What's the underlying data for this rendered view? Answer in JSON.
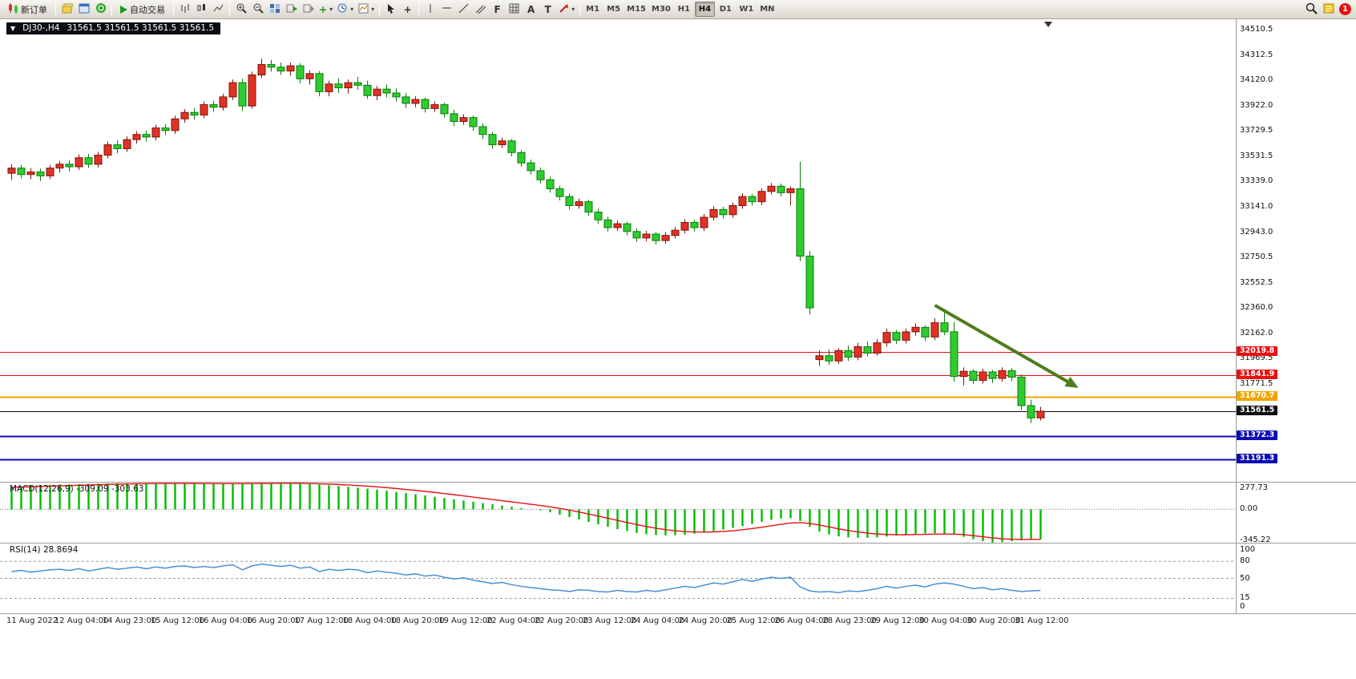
{
  "toolbar": {
    "new_order": "新订单",
    "auto_trading": "自动交易",
    "timeframes": [
      "M1",
      "M5",
      "M15",
      "M30",
      "H1",
      "H4",
      "D1",
      "W1",
      "MN"
    ],
    "active_timeframe": "H4",
    "notification_badge": "1"
  },
  "icons": {
    "one_click_trading": "▼",
    "crosshair": "+",
    "vertical_line": "|",
    "text_tool": "A",
    "text_label_tool": "T",
    "fibonacci": "F",
    "dropdown": "▾",
    "indicators_plus": "+"
  },
  "chart_header": {
    "symbol": "DJ30-,H4",
    "ohlc": "31561.5 31561.5 31561.5 31561.5"
  },
  "chart_data": [
    {
      "type": "candlestick",
      "symbol": "DJ30-,H4",
      "timeframe": "H4",
      "up_color": "#e03224",
      "up_border": "#7a150c",
      "down_color": "#2ecc2e",
      "down_border": "#0a7a0a",
      "ylim": [
        31010,
        34590
      ],
      "y_axis_labels": [
        "34510.5",
        "34312.5",
        "34120.0",
        "33922.0",
        "33729.5",
        "33531.5",
        "33339.0",
        "33141.0",
        "32943.0",
        "32750.5",
        "32552.5",
        "32360.0",
        "32162.0",
        "31969.5",
        "31771.5"
      ],
      "x_labels": [
        "11 Aug 2022",
        "12 Aug 04:00",
        "14 Aug 23:00",
        "15 Aug 12:00",
        "16 Aug 04:00",
        "16 Aug 20:00",
        "17 Aug 12:00",
        "18 Aug 04:00",
        "18 Aug 20:00",
        "19 Aug 12:00",
        "22 Aug 04:00",
        "22 Aug 20:00",
        "23 Aug 12:00",
        "24 Aug 04:00",
        "24 Aug 20:00",
        "25 Aug 12:00",
        "26 Aug 04:00",
        "28 Aug 23:00",
        "29 Aug 12:00",
        "30 Aug 04:00",
        "30 Aug 20:00",
        "31 Aug 12:00"
      ],
      "price_lines": [
        {
          "value": 32019.8,
          "label": "32019.8",
          "color": "#e81010",
          "width": 1,
          "role": "resistance"
        },
        {
          "value": 31841.9,
          "label": "31841.9",
          "color": "#e81010",
          "width": 1,
          "role": "resistance"
        },
        {
          "value": 31670.7,
          "label": "31670.7",
          "color": "#f0a500",
          "width": 2,
          "role": "level"
        },
        {
          "value": 31561.5,
          "label": "31561.5",
          "color": "#101010",
          "width": 1,
          "role": "current-price"
        },
        {
          "value": 31372.3,
          "label": "31372.3",
          "color": "#0a0ab4",
          "width": 2,
          "role": "support"
        },
        {
          "value": 31191.3,
          "label": "31191.3",
          "color": "#0a0ab4",
          "width": 2,
          "role": "support"
        }
      ],
      "trend_arrow": {
        "from_candle": 96,
        "from_price": 32380,
        "to_candle": 110.5,
        "to_price": 31760,
        "color": "#4e7d1e"
      },
      "candles": [
        [
          33400,
          33470,
          33350,
          33440
        ],
        [
          33440,
          33465,
          33360,
          33390
        ],
        [
          33390,
          33440,
          33355,
          33410
        ],
        [
          33410,
          33435,
          33340,
          33380
        ],
        [
          33380,
          33465,
          33355,
          33440
        ],
        [
          33440,
          33495,
          33405,
          33470
        ],
        [
          33470,
          33500,
          33415,
          33450
        ],
        [
          33450,
          33545,
          33425,
          33520
        ],
        [
          33520,
          33550,
          33440,
          33470
        ],
        [
          33470,
          33565,
          33445,
          33540
        ],
        [
          33540,
          33645,
          33515,
          33620
        ],
        [
          33620,
          33655,
          33555,
          33590
        ],
        [
          33590,
          33685,
          33565,
          33660
        ],
        [
          33660,
          33725,
          33630,
          33700
        ],
        [
          33700,
          33730,
          33645,
          33680
        ],
        [
          33680,
          33775,
          33655,
          33750
        ],
        [
          33750,
          33780,
          33695,
          33730
        ],
        [
          33730,
          33845,
          33705,
          33820
        ],
        [
          33820,
          33895,
          33790,
          33870
        ],
        [
          33870,
          33905,
          33815,
          33850
        ],
        [
          33850,
          33955,
          33825,
          33930
        ],
        [
          33930,
          33960,
          33875,
          33910
        ],
        [
          33910,
          34015,
          33885,
          33990
        ],
        [
          33990,
          34125,
          33965,
          34100
        ],
        [
          34100,
          34130,
          33880,
          33920
        ],
        [
          33920,
          34185,
          33900,
          34160
        ],
        [
          34160,
          34285,
          34135,
          34240
        ],
        [
          34240,
          34275,
          34185,
          34220
        ],
        [
          34220,
          34255,
          34160,
          34190
        ],
        [
          34190,
          34255,
          34155,
          34230
        ],
        [
          34230,
          34250,
          34095,
          34130
        ],
        [
          34130,
          34195,
          34085,
          34170
        ],
        [
          34170,
          34190,
          33995,
          34030
        ],
        [
          34030,
          34115,
          33995,
          34090
        ],
        [
          34090,
          34135,
          34020,
          34060
        ],
        [
          34060,
          34125,
          34015,
          34100
        ],
        [
          34100,
          34145,
          34045,
          34080
        ],
        [
          34080,
          34115,
          33975,
          34000
        ],
        [
          34000,
          34075,
          33965,
          34050
        ],
        [
          34050,
          34085,
          33985,
          34020
        ],
        [
          34020,
          34055,
          33955,
          33990
        ],
        [
          33990,
          34020,
          33905,
          33940
        ],
        [
          33940,
          33995,
          33910,
          33970
        ],
        [
          33970,
          33985,
          33870,
          33900
        ],
        [
          33900,
          33955,
          33875,
          33930
        ],
        [
          33930,
          33945,
          33830,
          33860
        ],
        [
          33860,
          33890,
          33765,
          33800
        ],
        [
          33800,
          33855,
          33775,
          33830
        ],
        [
          33830,
          33845,
          33730,
          33760
        ],
        [
          33760,
          33785,
          33665,
          33700
        ],
        [
          33700,
          33720,
          33590,
          33620
        ],
        [
          33620,
          33675,
          33595,
          33650
        ],
        [
          33650,
          33665,
          33530,
          33560
        ],
        [
          33560,
          33580,
          33450,
          33480
        ],
        [
          33480,
          33505,
          33390,
          33420
        ],
        [
          33420,
          33445,
          33320,
          33350
        ],
        [
          33350,
          33375,
          33250,
          33280
        ],
        [
          33280,
          33305,
          33190,
          33220
        ],
        [
          33220,
          33245,
          33120,
          33150
        ],
        [
          33150,
          33205,
          33125,
          33180
        ],
        [
          33180,
          33195,
          33070,
          33100
        ],
        [
          33100,
          33125,
          33010,
          33040
        ],
        [
          33040,
          33065,
          32950,
          32980
        ],
        [
          32980,
          33035,
          32955,
          33010
        ],
        [
          33010,
          33025,
          32920,
          32950
        ],
        [
          32950,
          32975,
          32870,
          32900
        ],
        [
          32900,
          32955,
          32875,
          32930
        ],
        [
          32930,
          32945,
          32850,
          32880
        ],
        [
          32880,
          32945,
          32855,
          32920
        ],
        [
          32920,
          32985,
          32895,
          32960
        ],
        [
          32960,
          33045,
          32935,
          33020
        ],
        [
          33020,
          33040,
          32950,
          32980
        ],
        [
          32980,
          33085,
          32955,
          33060
        ],
        [
          33060,
          33145,
          33035,
          33120
        ],
        [
          33120,
          33140,
          33050,
          33080
        ],
        [
          33080,
          33175,
          33055,
          33150
        ],
        [
          33150,
          33245,
          33125,
          33220
        ],
        [
          33220,
          33240,
          33150,
          33180
        ],
        [
          33180,
          33285,
          33155,
          33260
        ],
        [
          33260,
          33325,
          33235,
          33300
        ],
        [
          33300,
          33320,
          33220,
          33250
        ],
        [
          33250,
          33300,
          33150,
          33280
        ],
        [
          33280,
          33490,
          32720,
          32760
        ],
        [
          32760,
          32800,
          32310,
          32360
        ],
        [
          31960,
          32030,
          31910,
          31990
        ],
        [
          31990,
          32040,
          31920,
          31950
        ],
        [
          31950,
          32050,
          31925,
          32030
        ],
        [
          32030,
          32070,
          31950,
          31980
        ],
        [
          31980,
          32090,
          31955,
          32060
        ],
        [
          32060,
          32100,
          31985,
          32010
        ],
        [
          32010,
          32120,
          31990,
          32090
        ],
        [
          32090,
          32200,
          32060,
          32170
        ],
        [
          32170,
          32190,
          32080,
          32110
        ],
        [
          32110,
          32200,
          32085,
          32175
        ],
        [
          32175,
          32240,
          32145,
          32210
        ],
        [
          32210,
          32225,
          32105,
          32135
        ],
        [
          32135,
          32280,
          32110,
          32245
        ],
        [
          32245,
          32345,
          32150,
          32175
        ],
        [
          32175,
          32250,
          31790,
          31830
        ],
        [
          31830,
          31900,
          31760,
          31870
        ],
        [
          31870,
          31885,
          31770,
          31800
        ],
        [
          31800,
          31890,
          31775,
          31865
        ],
        [
          31865,
          31880,
          31780,
          31815
        ],
        [
          31815,
          31900,
          31790,
          31875
        ],
        [
          31875,
          31895,
          31795,
          31825
        ],
        [
          31825,
          31845,
          31570,
          31605
        ],
        [
          31605,
          31650,
          31470,
          31510
        ],
        [
          31510,
          31595,
          31490,
          31561.5
        ]
      ]
    },
    {
      "type": "bar",
      "name": "MACD(12,26,9)",
      "label": "MACD(12,26,9) -309.09 -303.63",
      "current_macd": -309.09,
      "current_signal": -303.63,
      "axis_labels": [
        "277.73",
        "0.00",
        "-345.22"
      ],
      "ylim": [
        -346,
        278
      ],
      "bar_color": "#00bb00",
      "signal_color": "#e81010",
      "values": [
        230,
        240,
        245,
        250,
        255,
        258,
        260,
        262,
        265,
        268,
        270,
        271,
        272,
        273,
        273,
        272,
        271,
        270,
        269,
        268,
        267,
        266,
        265,
        266,
        268,
        270,
        272,
        273,
        272,
        270,
        266,
        262,
        256,
        250,
        242,
        234,
        225,
        215,
        204,
        193,
        181,
        169,
        157,
        144,
        131,
        118,
        105,
        92,
        79,
        66,
        53,
        40,
        27,
        14,
        2,
        -10,
        -30,
        -55,
        -80,
        -105,
        -130,
        -155,
        -180,
        -205,
        -225,
        -245,
        -258,
        -266,
        -270,
        -268,
        -262,
        -252,
        -240,
        -226,
        -210,
        -192,
        -172,
        -150,
        -128,
        -108,
        -95,
        -90,
        -120,
        -180,
        -230,
        -260,
        -280,
        -290,
        -295,
        -295,
        -290,
        -282,
        -272,
        -262,
        -255,
        -250,
        -248,
        -252,
        -262,
        -285,
        -310,
        -330,
        -345,
        -340,
        -330,
        -320,
        -312,
        -309
      ]
    },
    {
      "type": "line",
      "name": "RSI(14)",
      "label": "RSI(14) 28.8694",
      "current": 28.8694,
      "axis_labels": [
        "100",
        "80",
        "50",
        "15",
        "0"
      ],
      "levels": [
        80,
        50,
        15
      ],
      "ylim": [
        0,
        100
      ],
      "line_color": "#4a90d2",
      "values": [
        62,
        64,
        61,
        63,
        65,
        66,
        64,
        67,
        63,
        66,
        69,
        66,
        68,
        70,
        67,
        70,
        68,
        71,
        72,
        69,
        71,
        69,
        72,
        74,
        65,
        72,
        75,
        73,
        71,
        73,
        68,
        70,
        62,
        66,
        64,
        66,
        65,
        60,
        63,
        61,
        59,
        56,
        58,
        54,
        56,
        52,
        49,
        51,
        47,
        44,
        41,
        43,
        39,
        36,
        34,
        32,
        30,
        29,
        27,
        30,
        29,
        27,
        26,
        29,
        27,
        26,
        29,
        27,
        30,
        33,
        36,
        34,
        38,
        42,
        40,
        44,
        48,
        45,
        49,
        52,
        50,
        52,
        35,
        28,
        26,
        27,
        25,
        28,
        27,
        29,
        32,
        36,
        33,
        36,
        38,
        35,
        40,
        42,
        40,
        36,
        32,
        34,
        30,
        32,
        29,
        27,
        28,
        28.87
      ]
    }
  ]
}
